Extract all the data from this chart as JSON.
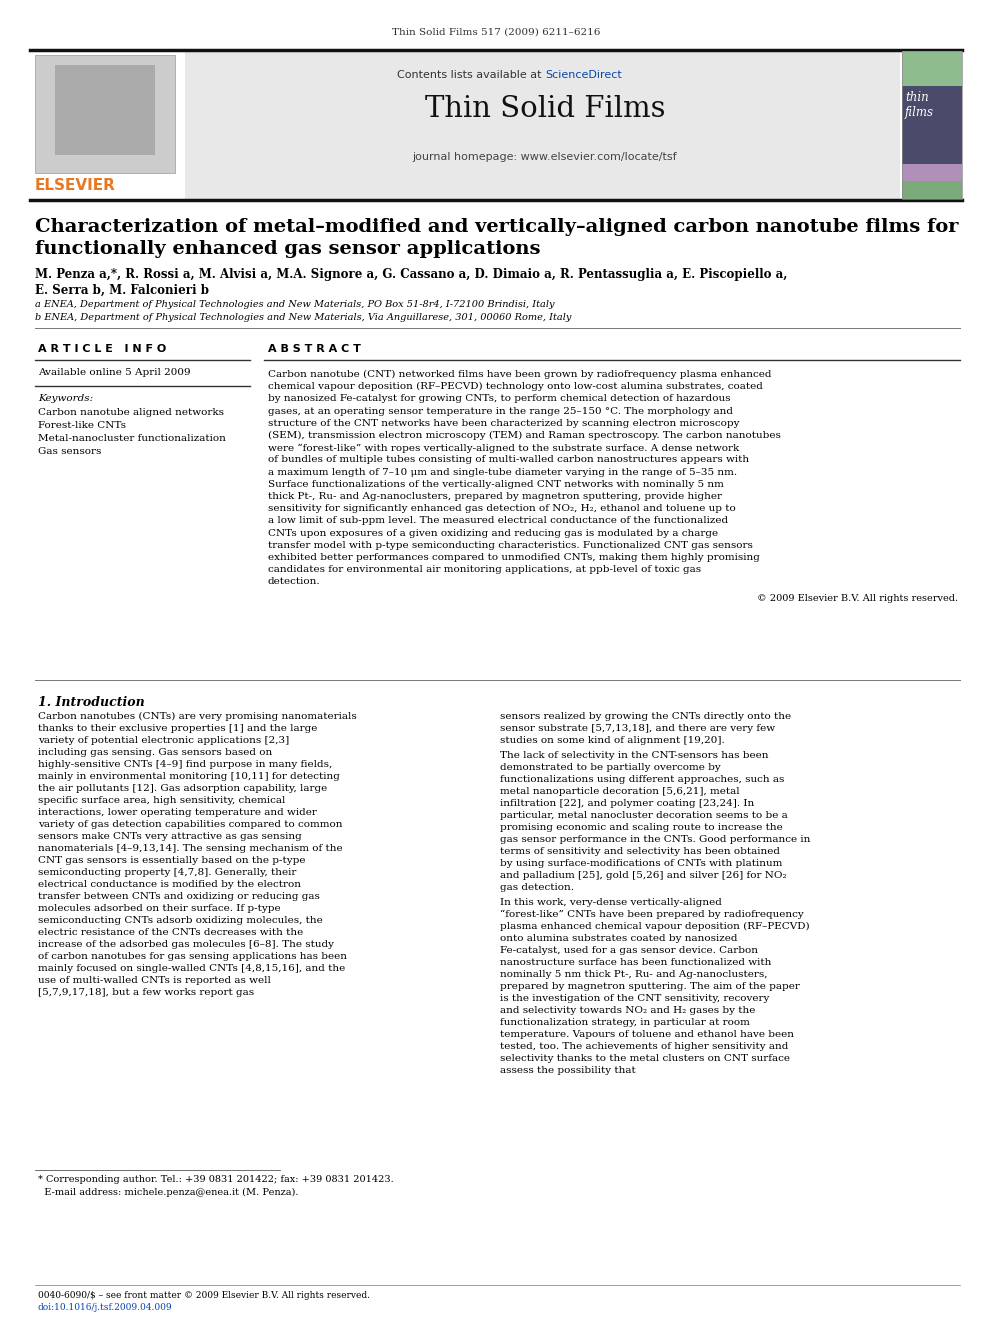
{
  "journal_ref": "Thin Solid Films 517 (2009) 6211–6216",
  "journal_title": "Thin Solid Films",
  "journal_homepage": "journal homepage: www.elsevier.com/locate/tsf",
  "sciencedirect_text": "Contents lists available at ",
  "sciencedirect_link": "ScienceDirect",
  "paper_title_line1": "Characterization of metal–modified and vertically–aligned carbon nanotube films for",
  "paper_title_line2": "functionally enhanced gas sensor applications",
  "authors_line1": "M. Penza a,*, R. Rossi a, M. Alvisi a, M.A. Signore a, G. Cassano a, D. Dimaio a, R. Pentassuglia a, E. Piscopiello a,",
  "authors_line2": "E. Serra b, M. Falconieri b",
  "affil_a": "a ENEA, Department of Physical Technologies and New Materials, PO Box 51-8r4, I-72100 Brindisi, Italy",
  "affil_b": "b ENEA, Department of Physical Technologies and New Materials, Via Anguillarese, 301, 00060 Rome, Italy",
  "article_info_header": "A R T I C L E   I N F O",
  "available_online": "Available online 5 April 2009",
  "keywords_header": "Keywords:",
  "keywords": [
    "Carbon nanotube aligned networks",
    "Forest-like CNTs",
    "Metal-nanocluster functionalization",
    "Gas sensors"
  ],
  "abstract_header": "A B S T R A C T",
  "abstract_text": "Carbon nanotube (CNT) networked films have been grown by radiofrequency plasma enhanced chemical vapour deposition (RF–PECVD) technology onto low-cost alumina substrates, coated by nanosized Fe-catalyst for growing CNTs, to perform chemical detection of hazardous gases, at an operating sensor temperature in the range 25–150 °C. The morphology and structure of the CNT networks have been characterized by scanning electron microscopy (SEM), transmission electron microscopy (TEM) and Raman spectroscopy. The carbon nanotubes were “forest-like” with ropes vertically-aligned to the substrate surface. A dense network of bundles of multiple tubes consisting of multi-walled carbon nanostructures appears with a maximum length of 7–10 μm and single-tube diameter varying in the range of 5–35 nm. Surface functionalizations of the vertically-aligned CNT networks with nominally 5 nm thick Pt-, Ru- and Ag-nanoclusters, prepared by magnetron sputtering, provide higher sensitivity for significantly enhanced gas detection of NO₂, H₂, ethanol and toluene up to a low limit of sub-ppm level. The measured electrical conductance of the functionalized CNTs upon exposures of a given oxidizing and reducing gas is modulated by a charge transfer model with p-type semiconducting characteristics. Functionalized CNT gas sensors exhibited better performances compared to unmodified CNTs, making them highly promising candidates for environmental air monitoring applications, at ppb-level of toxic gas detection.",
  "copyright_text": "© 2009 Elsevier B.V. All rights reserved.",
  "intro_header": "1. Introduction",
  "intro_col1": "Carbon nanotubes (CNTs) are very promising nanomaterials thanks to their exclusive properties [1] and the large variety of potential electronic applications [2,3] including gas sensing. Gas sensors based on highly-sensitive CNTs [4–9] find purpose in many fields, mainly in environmental monitoring [10,11] for detecting the air pollutants [12]. Gas adsorption capability, large specific surface area, high sensitivity, chemical interactions, lower operating temperature and wider variety of gas detection capabilities compared to common sensors make CNTs very attractive as gas sensing nanomaterials [4–9,13,14]. The sensing mechanism of the CNT gas sensors is essentially based on the p-type semiconducting property [4,7,8]. Generally, their electrical conductance is modified by the electron transfer between CNTs and oxidizing or reducing gas molecules adsorbed on their surface. If p-type semiconducting CNTs adsorb oxidizing molecules, the electric resistance of the CNTs decreases with the increase of the adsorbed gas molecules [6–8]. The study of carbon nanotubes for gas sensing applications has been mainly focused on single-walled CNTs [4,8,15,16], and the use of multi-walled CNTs is reported as well [5,7,9,17,18], but a few works report gas",
  "intro_col2": "sensors realized by growing the CNTs directly onto the sensor substrate [5,7,13,18], and there are very few studies on some kind of alignment [19,20].\n\nThe lack of selectivity in the CNT-sensors has been demonstrated to be partially overcome by functionalizations using different approaches, such as metal nanoparticle decoration [5,6,21], metal infiltration [22], and polymer coating [23,24]. In particular, metal nanocluster decoration seems to be a promising economic and scaling route to increase the gas sensor performance in the CNTs. Good performance in terms of sensitivity and selectivity has been obtained by using surface-modifications of CNTs with platinum and palladium [25], gold [5,26] and silver [26] for NO₂ gas detection.\n\nIn this work, very-dense vertically-aligned “forest-like” CNTs have been prepared by radiofrequency plasma enhanced chemical vapour deposition (RF–PECVD) onto alumina substrates coated by nanosized Fe-catalyst, used for a gas sensor device. Carbon nanostructure surface has been functionalized with nominally 5 nm thick Pt-, Ru- and Ag-nanoclusters, prepared by magnetron sputtering. The aim of the paper is the investigation of the CNT sensitivity, recovery and selectivity towards NO₂ and H₂ gases by the functionalization strategy, in particular at room temperature. Vapours of toluene and ethanol have been tested, too. The achievements of higher sensitivity and selectivity thanks to the metal clusters on CNT surface assess the possibility that",
  "footnote_line1": "* Corresponding author. Tel.: +39 0831 201422; fax: +39 0831 201423.",
  "footnote_line2": "  E-mail address: michele.penza@enea.it (M. Penza).",
  "footer_line1": "0040-6090/$ – see front matter © 2009 Elsevier B.V. All rights reserved.",
  "footer_line2": "doi:10.1016/j.tsf.2009.04.009",
  "bg_color": "#ffffff",
  "blue_link": "#0645ad",
  "elsevier_orange": "#e87722",
  "text_color": "#000000",
  "gray_header_bg": "#e8e8e8",
  "cover_green_top": "#8ab89a",
  "cover_dark": "#4a5568",
  "cover_purple": "#b8a0c0",
  "cover_green_bot": "#7aad8a"
}
